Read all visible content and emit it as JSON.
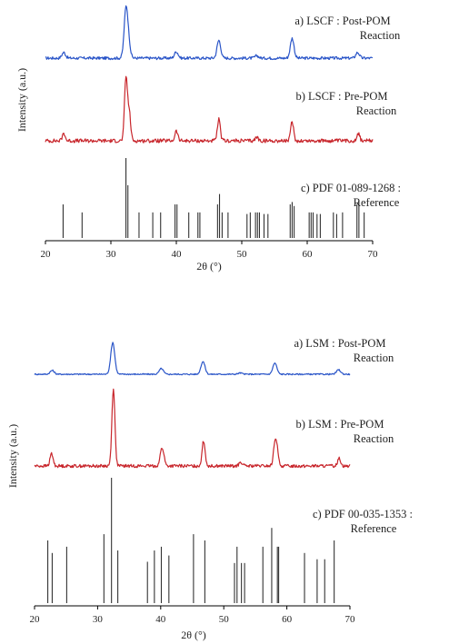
{
  "colors": {
    "post": "#2a55c8",
    "pre": "#c8262c",
    "ref": "#333333",
    "axis": "#000000"
  },
  "chart_data": [
    {
      "type": "line",
      "xlabel": "2θ (°)",
      "ylabel": "Intensity (a.u.)",
      "xlim": [
        20,
        70
      ],
      "x_ticks": [
        "20",
        "30",
        "40",
        "50",
        "60",
        "70"
      ],
      "grid": false,
      "series": [
        {
          "key": "post",
          "kind": "pattern",
          "label_line1": "a) LSCF : Post-POM",
          "label_line2": "Reaction",
          "baseline_noise": 0.03,
          "peaks": [
            [
              22.8,
              0.12
            ],
            [
              32.3,
              1.0
            ],
            [
              32.7,
              0.28
            ],
            [
              40.0,
              0.14
            ],
            [
              46.5,
              0.38
            ],
            [
              52.3,
              0.05
            ],
            [
              57.7,
              0.42
            ],
            [
              67.7,
              0.12
            ]
          ]
        },
        {
          "key": "pre",
          "kind": "pattern",
          "label_line1": "b) LSCF : Pre-POM",
          "label_line2": "Reaction",
          "baseline_noise": 0.03,
          "peaks": [
            [
              22.8,
              0.12
            ],
            [
              32.3,
              1.0
            ],
            [
              32.8,
              0.45
            ],
            [
              40.0,
              0.16
            ],
            [
              46.5,
              0.34
            ],
            [
              52.3,
              0.06
            ],
            [
              57.7,
              0.3
            ],
            [
              67.8,
              0.12
            ]
          ]
        },
        {
          "key": "ref",
          "kind": "sticks",
          "label_line1": "c) PDF 01-089-1268 :",
          "label_line2": "Reference",
          "sticks": [
            [
              22.7,
              0.42
            ],
            [
              25.6,
              0.32
            ],
            [
              32.3,
              1.0
            ],
            [
              32.6,
              0.66
            ],
            [
              34.3,
              0.32
            ],
            [
              36.4,
              0.32
            ],
            [
              37.6,
              0.32
            ],
            [
              39.8,
              0.42
            ],
            [
              40.1,
              0.42
            ],
            [
              41.9,
              0.32
            ],
            [
              43.3,
              0.32
            ],
            [
              43.6,
              0.32
            ],
            [
              46.3,
              0.42
            ],
            [
              46.6,
              0.55
            ],
            [
              47.0,
              0.32
            ],
            [
              47.9,
              0.32
            ],
            [
              50.8,
              0.3
            ],
            [
              51.3,
              0.32
            ],
            [
              52.1,
              0.32
            ],
            [
              52.4,
              0.32
            ],
            [
              52.7,
              0.32
            ],
            [
              53.4,
              0.3
            ],
            [
              54.0,
              0.3
            ],
            [
              57.4,
              0.42
            ],
            [
              57.7,
              0.45
            ],
            [
              58.0,
              0.4
            ],
            [
              60.3,
              0.32
            ],
            [
              60.6,
              0.32
            ],
            [
              60.9,
              0.32
            ],
            [
              61.5,
              0.3
            ],
            [
              62.0,
              0.3
            ],
            [
              64.0,
              0.32
            ],
            [
              64.5,
              0.3
            ],
            [
              65.4,
              0.32
            ],
            [
              67.6,
              0.42
            ],
            [
              67.9,
              0.46
            ],
            [
              68.7,
              0.32
            ]
          ]
        }
      ]
    },
    {
      "type": "line",
      "xlabel": "2θ (°)",
      "ylabel": "Intensity (a.u.)",
      "xlim": [
        20,
        70
      ],
      "x_ticks": [
        "20",
        "30",
        "40",
        "50",
        "60",
        "70"
      ],
      "grid": false,
      "series": [
        {
          "key": "post",
          "kind": "pattern",
          "label_line1": "a) LSM : Post-POM",
          "label_line2": "Reaction",
          "baseline_noise": 0.02,
          "peaks": [
            [
              22.8,
              0.12
            ],
            [
              32.4,
              1.0
            ],
            [
              40.1,
              0.18
            ],
            [
              46.7,
              0.4
            ],
            [
              52.6,
              0.04
            ],
            [
              58.1,
              0.35
            ],
            [
              68.2,
              0.14
            ]
          ]
        },
        {
          "key": "pre",
          "kind": "pattern",
          "label_line1": "b) LSM : Pre-POM",
          "label_line2": "Reaction",
          "baseline_noise": 0.02,
          "peaks": [
            [
              22.7,
              0.16
            ],
            [
              32.5,
              1.0
            ],
            [
              40.1,
              0.16
            ],
            [
              40.4,
              0.12
            ],
            [
              46.8,
              0.32
            ],
            [
              52.7,
              0.05
            ],
            [
              58.1,
              0.24
            ],
            [
              58.4,
              0.2
            ],
            [
              68.3,
              0.1
            ]
          ]
        },
        {
          "key": "ref",
          "kind": "sticks",
          "label_line1": "c) PDF 00-035-1353 :",
          "label_line2": "Reference",
          "sticks": [
            [
              22.1,
              0.5
            ],
            [
              22.8,
              0.4
            ],
            [
              25.1,
              0.45
            ],
            [
              31.0,
              0.55
            ],
            [
              32.2,
              1.0
            ],
            [
              33.2,
              0.42
            ],
            [
              37.9,
              0.33
            ],
            [
              39.0,
              0.42
            ],
            [
              40.1,
              0.45
            ],
            [
              41.3,
              0.38
            ],
            [
              45.2,
              0.55
            ],
            [
              47.0,
              0.5
            ],
            [
              51.7,
              0.32
            ],
            [
              52.1,
              0.45
            ],
            [
              52.8,
              0.32
            ],
            [
              53.3,
              0.32
            ],
            [
              56.2,
              0.45
            ],
            [
              57.6,
              0.6
            ],
            [
              58.5,
              0.45
            ],
            [
              58.7,
              0.45
            ],
            [
              62.8,
              0.4
            ],
            [
              64.8,
              0.35
            ],
            [
              66.0,
              0.35
            ],
            [
              67.5,
              0.5
            ]
          ]
        }
      ]
    }
  ]
}
